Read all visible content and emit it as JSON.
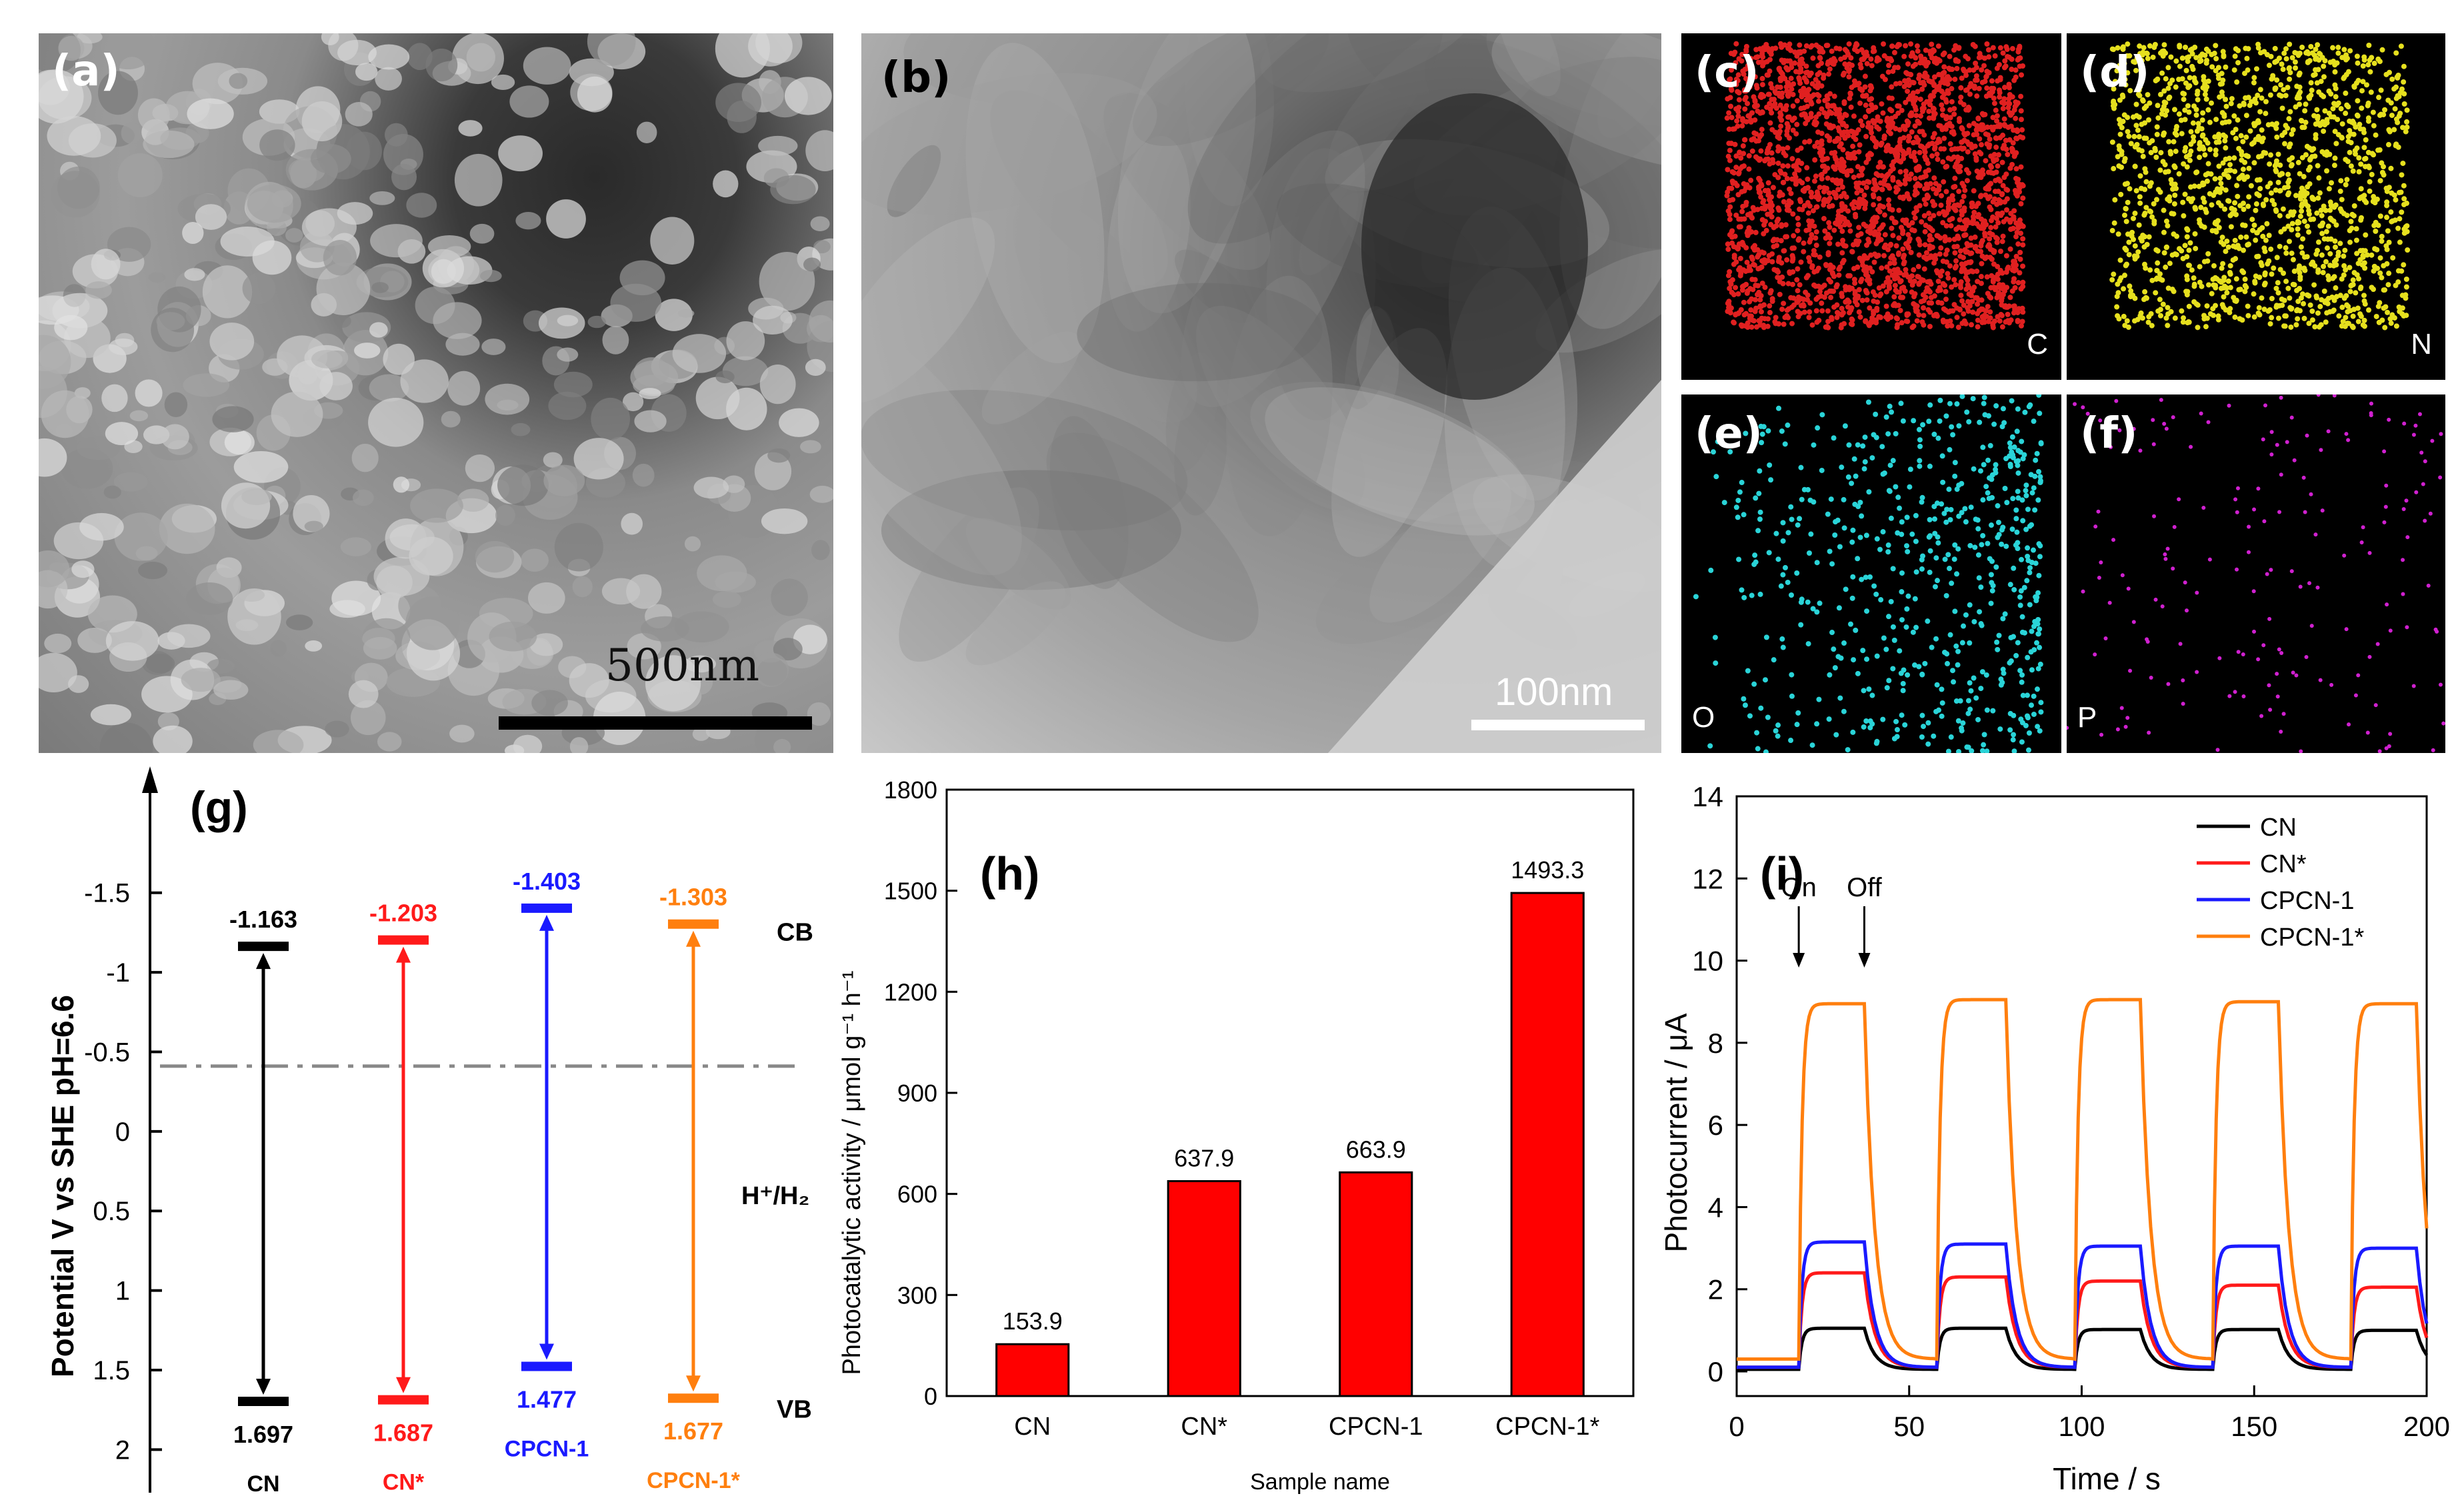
{
  "panels": {
    "a": {
      "label": "(a)",
      "scale": "500nm"
    },
    "b": {
      "label": "(b)",
      "scale": "100nm"
    },
    "c": {
      "label": "(c)",
      "element": "C",
      "color": "#e02020"
    },
    "d": {
      "label": "(d)",
      "element": "N",
      "color": "#e6e01e"
    },
    "e": {
      "label": "(e)",
      "element": "O",
      "color": "#2ad4d8"
    },
    "f": {
      "label": "(f)",
      "element": "P",
      "color": "#d020d0"
    }
  },
  "chart_data": [
    {
      "id": "g",
      "label": "(g)",
      "type": "band-diagram",
      "ylabel": "Potential V vs SHE pH=6.6",
      "yticks": [
        "-1.5",
        "-1",
        "-0.5",
        "0",
        "0.5",
        "1",
        "1.5",
        "2"
      ],
      "ylim": [
        -1.75,
        2.25
      ],
      "reference": {
        "name": "H⁺/H₂",
        "value": -0.41
      },
      "band_labels": {
        "cb": "CB",
        "vb": "VB"
      },
      "series": [
        {
          "name": "CN",
          "cb": -1.163,
          "vb": 1.697,
          "cb_label": "-1.163",
          "vb_label": "1.697",
          "color": "#000000"
        },
        {
          "name": "CN*",
          "cb": -1.203,
          "vb": 1.687,
          "cb_label": "-1.203",
          "vb_label": "1.687",
          "color": "#ff1a1a"
        },
        {
          "name": "CPCN-1",
          "cb": -1.403,
          "vb": 1.477,
          "cb_label": "-1.403",
          "vb_label": "1.477",
          "color": "#1a1aff"
        },
        {
          "name": "CPCN-1*",
          "cb": -1.303,
          "vb": 1.677,
          "cb_label": "-1.303",
          "vb_label": "1.677",
          "color": "#ff7f0e"
        }
      ]
    },
    {
      "id": "h",
      "label": "(h)",
      "type": "bar",
      "categories": [
        "CN",
        "CN*",
        "CPCN-1",
        "CPCN-1*"
      ],
      "values": [
        153.9,
        637.9,
        663.9,
        1493.3
      ],
      "value_labels": [
        "153.9",
        "637.9",
        "663.9",
        "1493.3"
      ],
      "xlabel": "Sample name",
      "ylabel": "Photocatalytic activity / μmol g⁻¹ h⁻¹",
      "ylim": [
        0,
        1800
      ],
      "yticks": [
        0,
        300,
        600,
        900,
        1200,
        1500,
        1800
      ],
      "bar_color": "#ff0000"
    },
    {
      "id": "i",
      "label": "(i)",
      "type": "line",
      "xlabel": "Time / s",
      "ylabel": "Photocurrent / μA",
      "xlim": [
        0,
        200
      ],
      "ylim": [
        -0.6,
        14
      ],
      "xticks": [
        0,
        50,
        100,
        150,
        200
      ],
      "yticks": [
        0,
        2,
        4,
        6,
        8,
        10,
        12,
        14
      ],
      "annotations": [
        {
          "text": "On",
          "x": 18
        },
        {
          "text": "Off",
          "x": 37
        }
      ],
      "light_cycles": [
        [
          18,
          37
        ],
        [
          58,
          78
        ],
        [
          98,
          117
        ],
        [
          138,
          157
        ],
        [
          178,
          197
        ]
      ],
      "legend_position": "top-right",
      "series": [
        {
          "name": "CN",
          "color": "#000000",
          "dark": 0.05,
          "on": [
            1.05,
            1.05,
            1.02,
            1.02,
            1.0
          ]
        },
        {
          "name": "CN*",
          "color": "#ff1a1a",
          "dark": 0.1,
          "on": [
            2.4,
            2.3,
            2.2,
            2.1,
            2.05
          ]
        },
        {
          "name": "CPCN-1",
          "color": "#1a1aff",
          "dark": 0.1,
          "on": [
            3.15,
            3.1,
            3.05,
            3.05,
            3.0
          ]
        },
        {
          "name": "CPCN-1*",
          "color": "#ff7f0e",
          "dark": 0.3,
          "on": [
            8.95,
            9.05,
            9.05,
            9.0,
            8.95
          ]
        }
      ]
    }
  ]
}
